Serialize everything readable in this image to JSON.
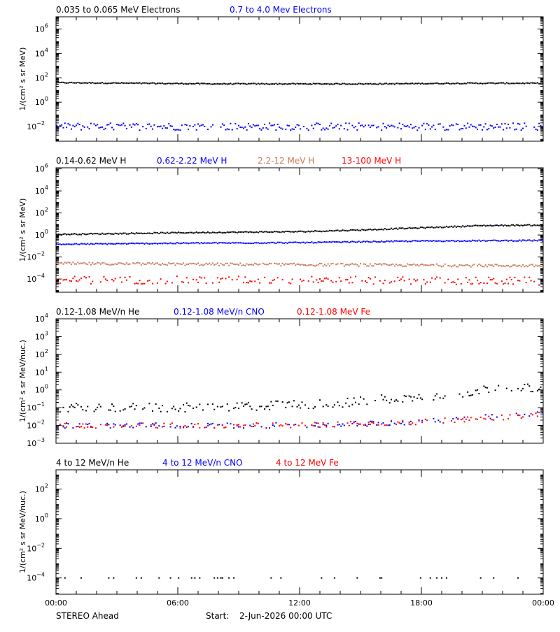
{
  "footer": {
    "spacecraft": "STEREO Ahead",
    "start_label": "Start:",
    "start_value": "2-Jun-2026 00:00 UTC"
  },
  "x_ticks": [
    "00:00",
    "06:00",
    "12:00",
    "18:00",
    "00:00"
  ],
  "chart_data": [
    {
      "type": "scatter",
      "ylabel": "1/(cm² s sr MeV)",
      "yscale": "log",
      "ylim_exp": [
        -3.2,
        7.0
      ],
      "yticks_exp": [
        -2,
        0,
        2,
        4,
        6
      ],
      "x_range_hours": [
        0,
        24
      ],
      "series": [
        {
          "name": "0.035 to 0.065 MeV Electrons",
          "color": "#000000",
          "points": [
            [
              0,
              1.6
            ],
            [
              4,
              1.55
            ],
            [
              8,
              1.5
            ],
            [
              12,
              1.5
            ],
            [
              16,
              1.5
            ],
            [
              20,
              1.55
            ],
            [
              24,
              1.55
            ]
          ],
          "scatter": 0.04,
          "gaps": 0
        },
        {
          "name": "0.7 to 4.0 Mev Electrons",
          "color": "#0000ff",
          "points": [
            [
              0,
              -2
            ],
            [
              12,
              -2
            ],
            [
              24,
              -2
            ]
          ],
          "scatter": 0.3,
          "gaps": 0.1
        }
      ]
    },
    {
      "type": "scatter",
      "ylabel": "1/(cm² s sr MeV)",
      "yscale": "log",
      "ylim_exp": [
        -5.2,
        6.1
      ],
      "yticks_exp": [
        -4,
        -2,
        0,
        2,
        4,
        6
      ],
      "x_range_hours": [
        0,
        24
      ],
      "series": [
        {
          "name": "0.14-0.62 MeV H",
          "color": "#000000",
          "points": [
            [
              0,
              0.05
            ],
            [
              6,
              0.2
            ],
            [
              12,
              0.3
            ],
            [
              15,
              0.45
            ],
            [
              18,
              0.65
            ],
            [
              21,
              0.85
            ],
            [
              24,
              0.9
            ]
          ],
          "scatter": 0.05,
          "gaps": 0
        },
        {
          "name": "0.62-2.22 MeV H",
          "color": "#0000ff",
          "points": [
            [
              0,
              -0.85
            ],
            [
              6,
              -0.75
            ],
            [
              12,
              -0.7
            ],
            [
              18,
              -0.55
            ],
            [
              24,
              -0.5
            ]
          ],
          "scatter": 0.05,
          "gaps": 0
        },
        {
          "name": "2.2-12 MeV H",
          "color": "#c87a5a",
          "points": [
            [
              0,
              -2.6
            ],
            [
              12,
              -2.7
            ],
            [
              24,
              -2.8
            ]
          ],
          "scatter": 0.12,
          "gaps": 0.05
        },
        {
          "name": "13-100 MeV H",
          "color": "#ff0000",
          "points": [
            [
              0,
              -4.1
            ],
            [
              12,
              -4.1
            ],
            [
              24,
              -4.2
            ]
          ],
          "scatter": 0.35,
          "gaps": 0.35
        }
      ]
    },
    {
      "type": "scatter",
      "ylabel": "1/(cm² s sr MeV/nuc.)",
      "yscale": "log",
      "ylim_exp": [
        -3.0,
        4.0
      ],
      "yticks_exp": [
        -3,
        -2,
        -1,
        0,
        1,
        2,
        3,
        4
      ],
      "x_range_hours": [
        0,
        24
      ],
      "series": [
        {
          "name": "0.12-1.08 MeV/n He",
          "color": "#000000",
          "points": [
            [
              0,
              -1.0
            ],
            [
              6,
              -1.0
            ],
            [
              10,
              -0.9
            ],
            [
              14,
              -0.75
            ],
            [
              16,
              -0.5
            ],
            [
              18,
              -0.4
            ],
            [
              20,
              -0.2
            ],
            [
              22,
              0.2
            ],
            [
              24,
              0.0
            ]
          ],
          "scatter": 0.25,
          "gaps": 0.45
        },
        {
          "name": "0.12-1.08 MeV/n CNO",
          "color": "#0000ff",
          "points": [
            [
              0,
              -2.0
            ],
            [
              12,
              -2.0
            ],
            [
              18,
              -1.8
            ],
            [
              24,
              -1.3
            ]
          ],
          "scatter": 0.15,
          "gaps": 0.6
        },
        {
          "name": "0.12-1.08 MeV Fe",
          "color": "#ff0000",
          "points": [
            [
              0,
              -2.0
            ],
            [
              12,
              -2.0
            ],
            [
              18,
              -1.8
            ],
            [
              24,
              -1.4
            ]
          ],
          "scatter": 0.15,
          "gaps": 0.55
        }
      ]
    },
    {
      "type": "scatter",
      "ylabel": "1/(cm² s sr MeV/nuc.)",
      "yscale": "log",
      "ylim_exp": [
        -5.1,
        3.3
      ],
      "yticks_exp": [
        -4,
        -2,
        0,
        2
      ],
      "x_range_hours": [
        0,
        24
      ],
      "series": [
        {
          "name": "4 to 12 MeV/n He",
          "color": "#000000",
          "points": [
            [
              0,
              -4.0
            ],
            [
              24,
              -4.0
            ]
          ],
          "scatter": 0.0,
          "gaps": 0.88
        },
        {
          "name": "4 to 12 MeV/n CNO",
          "color": "#0000ff",
          "points": [],
          "scatter": 0,
          "gaps": 1
        },
        {
          "name": "4 to 12 MeV Fe",
          "color": "#ff0000",
          "points": [],
          "scatter": 0,
          "gaps": 1
        }
      ]
    }
  ]
}
